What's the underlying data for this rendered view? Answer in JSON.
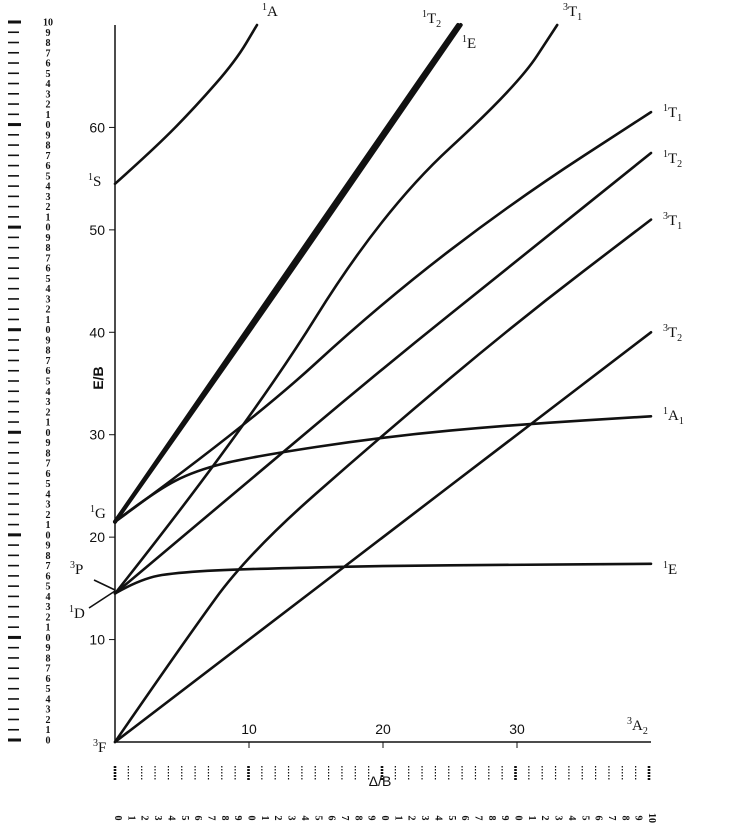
{
  "chart_data": {
    "type": "line",
    "xlabel": "Δ/B",
    "ylabel": "E/B",
    "xlim": [
      0,
      40
    ],
    "ylim": [
      0,
      70
    ],
    "xticks": [
      "10",
      "20",
      "30"
    ],
    "yticks": [
      "10",
      "20",
      "30",
      "40",
      "50",
      "60"
    ],
    "grid": false,
    "legend": "none",
    "line_color": "#111111",
    "series": [
      {
        "name": "1A",
        "points": [
          [
            0,
            54.5
          ],
          [
            3,
            58
          ],
          [
            6,
            62
          ],
          [
            9,
            66.5
          ],
          [
            10.6,
            70
          ]
        ]
      },
      {
        "name": "1T2",
        "points": [
          [
            0,
            21.5
          ],
          [
            10,
            40
          ],
          [
            20,
            59
          ],
          [
            25.8,
            70
          ]
        ]
      },
      {
        "name": "1E",
        "points": [
          [
            0,
            21.5
          ],
          [
            10,
            40.5
          ],
          [
            20,
            59.5
          ],
          [
            25.6,
            70
          ]
        ]
      },
      {
        "name": "3T1",
        "points": [
          [
            0,
            14.5
          ],
          [
            10,
            31
          ],
          [
            20,
            52
          ],
          [
            30,
            64
          ],
          [
            33,
            70
          ]
        ]
      },
      {
        "name": "1T1",
        "points": [
          [
            0,
            21.5
          ],
          [
            10,
            31
          ],
          [
            20,
            43
          ],
          [
            30,
            53
          ],
          [
            40,
            61.5
          ]
        ]
      },
      {
        "name": "1T2",
        "points": [
          [
            0,
            14.5
          ],
          [
            10,
            25.5
          ],
          [
            20,
            36.5
          ],
          [
            30,
            47
          ],
          [
            40,
            57.5
          ]
        ]
      },
      {
        "name": "3T1",
        "points": [
          [
            0,
            0
          ],
          [
            5,
            9.5
          ],
          [
            10,
            18.5
          ],
          [
            20,
            30
          ],
          [
            30,
            41
          ],
          [
            40,
            51
          ]
        ]
      },
      {
        "name": "3T2",
        "points": [
          [
            0,
            0
          ],
          [
            10,
            10
          ],
          [
            20,
            20
          ],
          [
            30,
            30
          ],
          [
            40,
            40
          ]
        ]
      },
      {
        "name": "1A1",
        "points": [
          [
            0,
            21.5
          ],
          [
            3,
            24.5
          ],
          [
            6,
            26.5
          ],
          [
            10,
            27.8
          ],
          [
            20,
            29.8
          ],
          [
            30,
            31
          ],
          [
            40,
            31.8
          ]
        ]
      },
      {
        "name": "1E",
        "points": [
          [
            0,
            14.5
          ],
          [
            2,
            16
          ],
          [
            5,
            16.6
          ],
          [
            10,
            16.9
          ],
          [
            20,
            17.2
          ],
          [
            30,
            17.3
          ],
          [
            40,
            17.4
          ]
        ]
      }
    ],
    "term_labels": [
      {
        "id": "A",
        "sup": "1",
        "main": "A",
        "sub": ""
      },
      {
        "id": "T2a",
        "sup": "1",
        "main": "T",
        "sub": "2"
      },
      {
        "id": "Ea",
        "sup": "1",
        "main": "E",
        "sub": ""
      },
      {
        "id": "T1a",
        "sup": "3",
        "main": "T",
        "sub": "1"
      },
      {
        "id": "T1b",
        "sup": "1",
        "main": "T",
        "sub": "1"
      },
      {
        "id": "T2b",
        "sup": "1",
        "main": "T",
        "sub": "2"
      },
      {
        "id": "T1c",
        "sup": "3",
        "main": "T",
        "sub": "1"
      },
      {
        "id": "T2c",
        "sup": "3",
        "main": "T",
        "sub": "2"
      },
      {
        "id": "A1",
        "sup": "1",
        "main": "A",
        "sub": "1"
      },
      {
        "id": "Eb",
        "sup": "1",
        "main": "E",
        "sub": ""
      },
      {
        "id": "A2",
        "sup": "3",
        "main": "A",
        "sub": "2"
      },
      {
        "id": "S",
        "sup": "1",
        "main": "S",
        "sub": ""
      },
      {
        "id": "G",
        "sup": "1",
        "main": "G",
        "sub": ""
      },
      {
        "id": "P",
        "sup": "3",
        "main": "P",
        "sub": ""
      },
      {
        "id": "D",
        "sup": "1",
        "main": "D",
        "sub": ""
      },
      {
        "id": "F",
        "sup": "3",
        "main": "F",
        "sub": ""
      }
    ],
    "left_ruler_digits": [
      "10",
      "9",
      "8",
      "7",
      "6",
      "5",
      "4",
      "3",
      "2",
      "1",
      "0",
      "9",
      "8",
      "7",
      "6",
      "5",
      "4",
      "3",
      "2",
      "1",
      "0",
      "9",
      "8",
      "7",
      "6",
      "5",
      "4",
      "3",
      "2",
      "1",
      "0",
      "9",
      "8",
      "7",
      "6",
      "5",
      "4",
      "3",
      "2",
      "1",
      "0",
      "9",
      "8",
      "7",
      "6",
      "5",
      "4",
      "3",
      "2",
      "1",
      "0",
      "9",
      "8",
      "7",
      "6",
      "5",
      "4",
      "3",
      "2",
      "1",
      "0",
      "9",
      "8",
      "7",
      "6",
      "5",
      "4",
      "3",
      "2",
      "1",
      "0"
    ],
    "bottom_ruler_digits": [
      "0",
      "1",
      "2",
      "3",
      "4",
      "5",
      "6",
      "7",
      "8",
      "9",
      "0",
      "1",
      "2",
      "3",
      "4",
      "5",
      "6",
      "7",
      "8",
      "9",
      "0",
      "1",
      "2",
      "3",
      "4",
      "5",
      "6",
      "7",
      "8",
      "9",
      "0",
      "1",
      "2",
      "3",
      "4",
      "5",
      "6",
      "7",
      "8",
      "9",
      "10"
    ]
  }
}
